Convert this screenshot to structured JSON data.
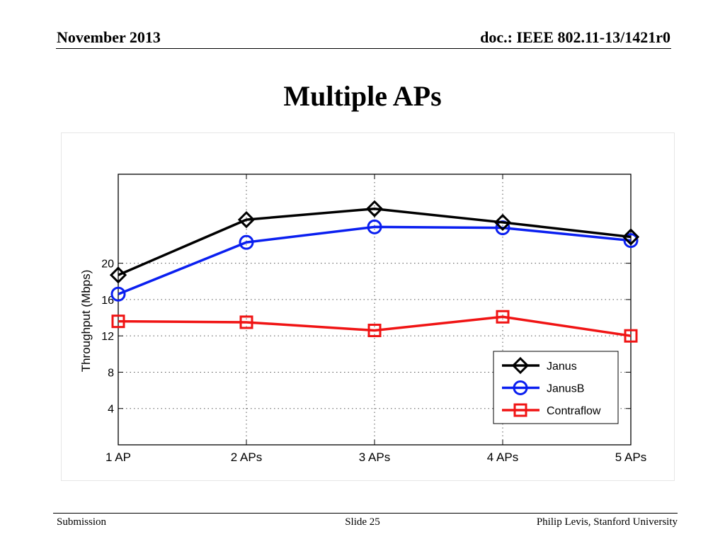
{
  "header": {
    "date": "November 2013",
    "doc_id": "doc.: IEEE 802.11-13/1421r0"
  },
  "slide": {
    "title": "Multiple APs"
  },
  "footer": {
    "left": "Submission",
    "center": "Slide 25",
    "right": "Philip Levis, Stanford University"
  },
  "chart_data": {
    "type": "line",
    "categories": [
      "1 AP",
      "2 APs",
      "3 APs",
      "4 APs",
      "5 APs"
    ],
    "ylabel": "Throughput (Mbps)",
    "xlabel": "",
    "yticks": [
      4,
      8,
      12,
      16,
      20
    ],
    "ylim": [
      0,
      29.8
    ],
    "grid": true,
    "legend_position": "bottom-right",
    "series": [
      {
        "name": "Janus",
        "values": [
          18.7,
          24.8,
          26.0,
          24.5,
          22.9
        ],
        "color": "#000000",
        "marker": "diamond"
      },
      {
        "name": "JanusB",
        "values": [
          16.6,
          22.3,
          24.0,
          23.9,
          22.5
        ],
        "color": "#0a1ff0",
        "marker": "circle"
      },
      {
        "name": "Contraflow",
        "values": [
          13.6,
          13.5,
          12.6,
          14.1,
          12.0
        ],
        "color": "#f01414",
        "marker": "square"
      }
    ]
  }
}
